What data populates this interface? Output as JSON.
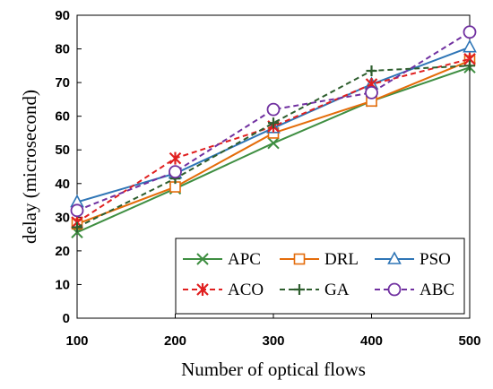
{
  "chart_data": {
    "type": "line",
    "xlabel": "Number of optical flows",
    "ylabel": "delay (microsecond)",
    "x": [
      100,
      200,
      300,
      400,
      500
    ],
    "xticks": [
      100,
      200,
      300,
      400,
      500
    ],
    "xlim": [
      100,
      500
    ],
    "ylim": [
      0,
      90
    ],
    "yticks": [
      0,
      10,
      20,
      30,
      40,
      50,
      60,
      70,
      80,
      90
    ],
    "grid": false,
    "legend": "bottom-right",
    "series": [
      {
        "name": "APC",
        "values": [
          25.5,
          38.5,
          52,
          64.5,
          74.5
        ],
        "color": "#3e8e41",
        "dash": "solid",
        "marker": "x"
      },
      {
        "name": "DRL",
        "values": [
          28,
          39,
          55,
          64.5,
          76.5
        ],
        "color": "#e46c0a",
        "dash": "solid",
        "marker": "square"
      },
      {
        "name": "PSO",
        "values": [
          34.5,
          43,
          56.5,
          69.5,
          80.5
        ],
        "color": "#2e75b6",
        "dash": "solid",
        "marker": "triangle"
      },
      {
        "name": "ACO",
        "values": [
          28.5,
          47.5,
          57,
          69.5,
          77
        ],
        "color": "#e02020",
        "dash": "dashed",
        "marker": "asterisk"
      },
      {
        "name": "GA",
        "values": [
          27,
          41.5,
          58,
          73.5,
          75
        ],
        "color": "#2e5e2e",
        "dash": "dashed",
        "marker": "plus"
      },
      {
        "name": "ABC",
        "values": [
          32,
          43.5,
          62,
          67,
          85
        ],
        "color": "#7030a0",
        "dash": "dashed",
        "marker": "circle"
      }
    ]
  }
}
